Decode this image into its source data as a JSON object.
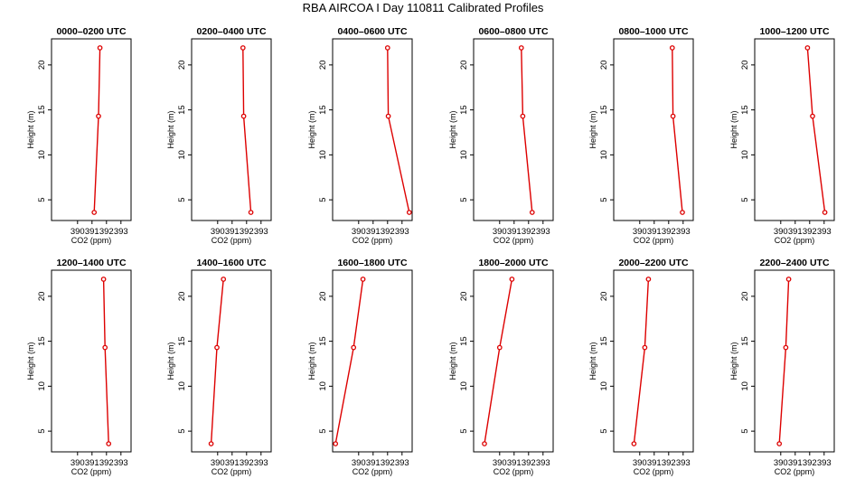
{
  "chart_data": {
    "type": "line",
    "title": "RBA AIRCOA I  Day 110811  Calibrated Profiles",
    "xlabel": "CO2 (ppm)",
    "ylabel": "Height (m)",
    "xlim": [
      388.2,
      393.7
    ],
    "ylim": [
      2.7,
      22.9
    ],
    "xticks": [
      390,
      391,
      392,
      393
    ],
    "yticks": [
      5,
      10,
      15,
      20
    ],
    "line_color": "#dd0000",
    "heights": [
      3.6,
      14.3,
      21.9
    ],
    "panels": [
      {
        "title": "0000–0200 UTC",
        "co2": [
          391.15,
          391.45,
          391.55
        ]
      },
      {
        "title": "0200–0400 UTC",
        "co2": [
          392.3,
          391.8,
          391.75
        ]
      },
      {
        "title": "0400–0600 UTC",
        "co2": [
          393.5,
          392.05,
          392.0
        ]
      },
      {
        "title": "0600–0800 UTC",
        "co2": [
          392.25,
          391.6,
          391.5
        ]
      },
      {
        "title": "0800–1000 UTC",
        "co2": [
          392.95,
          392.3,
          392.25
        ]
      },
      {
        "title": "1000–1200 UTC",
        "co2": [
          393.05,
          392.2,
          391.85
        ]
      },
      {
        "title": "1200–1400 UTC",
        "co2": [
          392.15,
          391.9,
          391.8
        ]
      },
      {
        "title": "1400–1600 UTC",
        "co2": [
          389.55,
          389.95,
          390.4
        ]
      },
      {
        "title": "1600–1800 UTC",
        "co2": [
          388.4,
          389.65,
          390.3
        ]
      },
      {
        "title": "1800–2000 UTC",
        "co2": [
          388.95,
          390.0,
          390.85
        ]
      },
      {
        "title": "2000–2200 UTC",
        "co2": [
          389.6,
          390.35,
          390.6
        ]
      },
      {
        "title": "2200–2400 UTC",
        "co2": [
          389.9,
          390.35,
          390.55
        ]
      }
    ]
  }
}
